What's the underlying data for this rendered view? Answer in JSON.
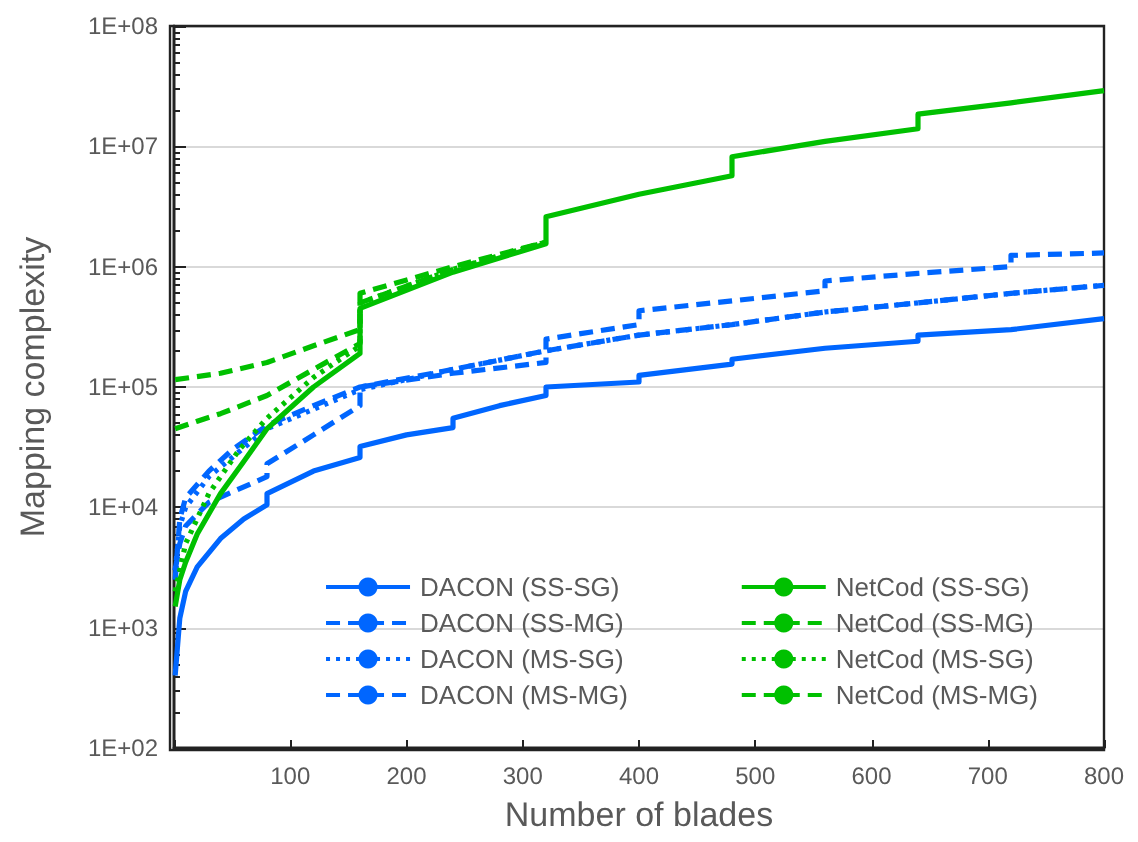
{
  "chart_data": {
    "type": "line",
    "xlabel": "Number of blades",
    "ylabel": "Mapping complexity",
    "log": "y",
    "grid": "y",
    "legend": "bottom right",
    "marker": "none",
    "xlim": [
      0,
      800
    ],
    "xticks": [
      {
        "value": 0,
        "label": null
      },
      100,
      200,
      300,
      400,
      500,
      600,
      700,
      800
    ],
    "ylim": [
      100,
      100000000
    ],
    "yticks": [
      {
        "value": 100,
        "label": "1E+02"
      },
      {
        "value": 1000,
        "label": "1E+03"
      },
      {
        "value": 10000,
        "label": "1E+04"
      },
      {
        "value": 100000,
        "label": "1E+05"
      },
      {
        "value": 1000000,
        "label": "1E+06"
      },
      {
        "value": 10000000,
        "label": "1E+07"
      },
      {
        "value": 100000000,
        "label": "1E+08"
      }
    ],
    "series": [
      {
        "name": "DACON (SS-SG)",
        "color": "#0066ff",
        "line_style": "solid",
        "x": [
          1,
          5,
          10,
          20,
          40,
          60,
          80,
          80,
          120,
          160,
          160,
          200,
          240,
          240,
          280,
          320,
          320,
          400,
          400,
          480,
          480,
          560,
          640,
          640,
          720,
          800
        ],
        "values": [
          400,
          1200,
          2000,
          3200,
          5500,
          8000,
          10500,
          13000,
          20000,
          26000,
          32000,
          40000,
          46000,
          55000,
          70000,
          85000,
          100000,
          110000,
          125000,
          155000,
          170000,
          210000,
          240000,
          270000,
          300000,
          370000
        ]
      },
      {
        "name": "DACON (SS-MG)",
        "color": "#0066ff",
        "line_style": "dashed",
        "x": [
          1,
          5,
          10,
          30,
          80,
          80,
          120,
          160,
          160,
          240,
          320,
          320,
          400,
          400,
          480,
          560,
          560,
          640,
          720,
          720,
          800
        ],
        "values": [
          3000,
          5000,
          7000,
          11000,
          18000,
          23000,
          40000,
          70000,
          100000,
          130000,
          160000,
          250000,
          330000,
          430000,
          520000,
          630000,
          760000,
          880000,
          1000000,
          1240000,
          1300000
        ]
      },
      {
        "name": "DACON (MS-SG)",
        "color": "#0066ff",
        "line_style": "dotted",
        "x": [
          1,
          5,
          10,
          30,
          80,
          160,
          240,
          320,
          400,
          480,
          560,
          640,
          720,
          800
        ],
        "values": [
          3000,
          7000,
          10000,
          18000,
          45000,
          95000,
          140000,
          200000,
          270000,
          330000,
          420000,
          500000,
          600000,
          700000
        ]
      },
      {
        "name": "DACON (MS-MG)",
        "color": "#0066ff",
        "line_style": "dashed",
        "x": [
          1,
          5,
          10,
          30,
          50,
          80,
          120,
          160,
          240,
          320,
          400,
          480,
          560,
          640,
          720,
          800
        ],
        "values": [
          2500,
          8000,
          12000,
          20000,
          30000,
          48000,
          70000,
          100000,
          140000,
          200000,
          270000,
          330000,
          420000,
          500000,
          600000,
          700000
        ]
      },
      {
        "name": "NetCod (SS-SG)",
        "color": "#00c000",
        "line_style": "solid",
        "x": [
          1,
          5,
          10,
          20,
          40,
          60,
          80,
          120,
          160,
          160,
          240,
          320,
          320,
          400,
          480,
          480,
          560,
          640,
          640,
          720,
          800
        ],
        "values": [
          1500,
          2500,
          3500,
          6000,
          13000,
          24000,
          45000,
          100000,
          190000,
          450000,
          900000,
          1550000,
          2600000,
          4000000,
          5700000,
          8200000,
          11000000,
          14000000,
          18500000,
          23000000,
          29000000
        ]
      },
      {
        "name": "NetCod (SS-MG)",
        "color": "#00c000",
        "line_style": "dashed",
        "x": [
          1,
          40,
          80,
          120,
          160,
          160,
          240,
          320
        ],
        "values": [
          115000,
          130000,
          160000,
          220000,
          300000,
          600000,
          1000000,
          1600000
        ]
      },
      {
        "name": "NetCod (MS-SG)",
        "color": "#00c000",
        "line_style": "dotted",
        "x": [
          1,
          10,
          30,
          56,
          80,
          120,
          160,
          160,
          240,
          320
        ],
        "values": [
          2000,
          5000,
          13000,
          30000,
          55000,
          120000,
          220000,
          500000,
          950000,
          1600000
        ]
      },
      {
        "name": "NetCod (MS-MG)",
        "color": "#00c000",
        "line_style": "dashed",
        "x": [
          1,
          20,
          40,
          80,
          120,
          160,
          160,
          240,
          320
        ],
        "values": [
          45000,
          52000,
          60000,
          85000,
          140000,
          230000,
          500000,
          950000,
          1600000
        ]
      }
    ]
  }
}
